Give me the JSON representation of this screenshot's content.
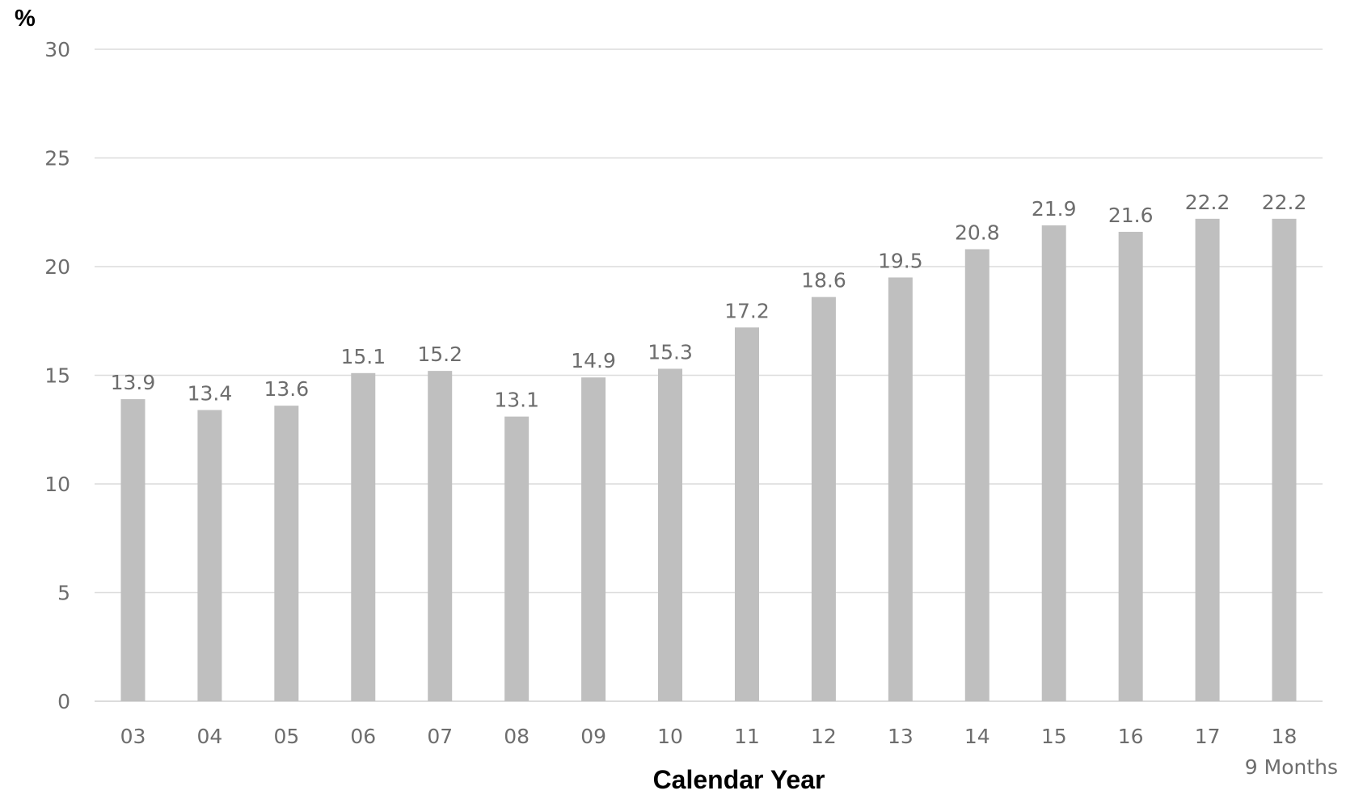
{
  "chart_data": {
    "type": "bar",
    "title": "",
    "ylabel": "%",
    "xlabel": "Calendar Year",
    "ylim": [
      0,
      30
    ],
    "yticks": [
      0,
      5,
      10,
      15,
      20,
      25,
      30
    ],
    "grid": true,
    "categories": [
      "03",
      "04",
      "05",
      "06",
      "07",
      "08",
      "09",
      "10",
      "11",
      "12",
      "13",
      "14",
      "15",
      "16",
      "17",
      "18"
    ],
    "category_notes": {
      "18": "9 Months"
    },
    "values": [
      13.9,
      13.4,
      13.6,
      15.1,
      15.2,
      13.1,
      14.9,
      15.3,
      17.2,
      18.6,
      19.5,
      20.8,
      21.9,
      21.6,
      22.2,
      22.2
    ],
    "data_labels": [
      "13.9",
      "13.4",
      "13.6",
      "15.1",
      "15.2",
      "13.1",
      "14.9",
      "15.3",
      "17.2",
      "18.6",
      "19.5",
      "20.8",
      "21.9",
      "21.6",
      "22.2",
      "22.2"
    ],
    "bar_color": "#bfbfbf",
    "grid_color": "#dcdcdc",
    "text_color": "#6d6d6d"
  }
}
